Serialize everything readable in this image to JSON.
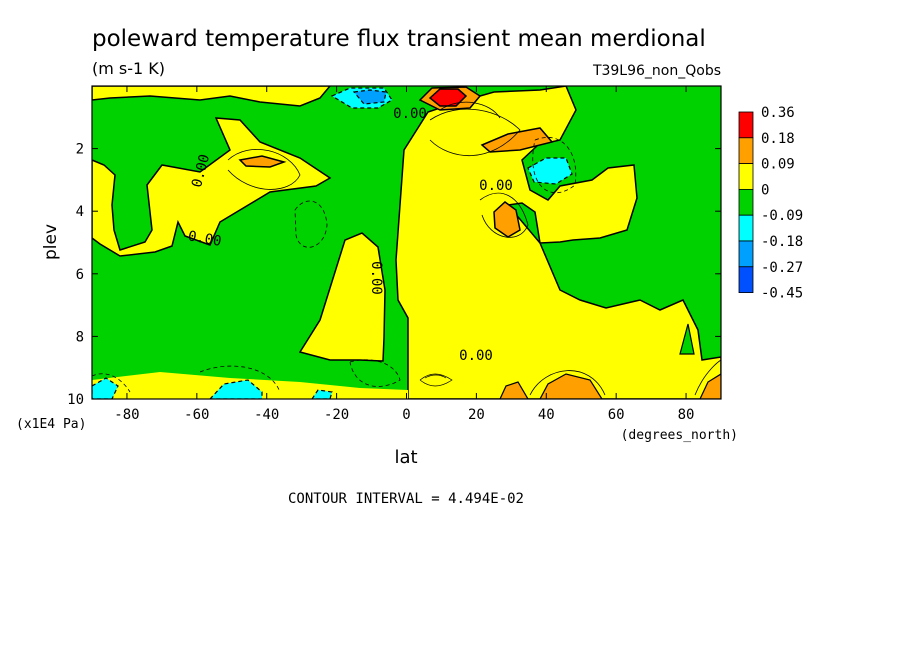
{
  "chart_data": {
    "type": "heatmap",
    "title": "poleward temperature flux transient mean merdional",
    "units": "(m s-1 K)",
    "experiment": "T39L96_non_Qobs",
    "xlabel": "lat",
    "x_units": "(degrees_north)",
    "ylabel": "plev",
    "y_units": "(x1E4 Pa)",
    "xlim": [
      -90,
      90
    ],
    "ylim": [
      0,
      10
    ],
    "y_inverted": true,
    "x_ticks": [
      {
        "value": -80,
        "label": "-80"
      },
      {
        "value": -60,
        "label": "-60"
      },
      {
        "value": -40,
        "label": "-40"
      },
      {
        "value": -20,
        "label": "-20"
      },
      {
        "value": 0,
        "label": "0"
      },
      {
        "value": 20,
        "label": "20"
      },
      {
        "value": 40,
        "label": "40"
      },
      {
        "value": 60,
        "label": "60"
      },
      {
        "value": 80,
        "label": "80"
      }
    ],
    "y_ticks": [
      {
        "value": 2,
        "label": "2"
      },
      {
        "value": 4,
        "label": "4"
      },
      {
        "value": 6,
        "label": "6"
      },
      {
        "value": 8,
        "label": "8"
      },
      {
        "value": 10,
        "label": "10"
      }
    ],
    "colorbar": [
      {
        "label": "0.36",
        "color": "#ff0000"
      },
      {
        "label": "0.18",
        "color": "#ffa000"
      },
      {
        "label": "0.09",
        "color": "#ffff00"
      },
      {
        "label": "0",
        "color": "#00d200"
      },
      {
        "label": "-0.09",
        "color": "#00ffff"
      },
      {
        "label": "-0.18",
        "color": "#00a0ff"
      },
      {
        "label": "-0.27",
        "color": "#0050ff"
      },
      {
        "label": "-0.45",
        "color": ""
      }
    ],
    "contour_labels": [
      {
        "text": "0.00",
        "lat": -57,
        "plev": 3.1,
        "rotate": -75
      },
      {
        "text": "0.00",
        "lat": -59,
        "plev": 5.0,
        "rotate": 10
      },
      {
        "text": "0.00",
        "lat": -9,
        "plev": 6.2,
        "rotate": 90
      },
      {
        "text": "0.00",
        "lat": 1,
        "plev": 1.2,
        "rotate": 0
      },
      {
        "text": "0.00",
        "lat": 25,
        "plev": 3.3,
        "rotate": 0
      },
      {
        "text": "0.00",
        "lat": 20,
        "plev": 8.6,
        "rotate": 0
      }
    ],
    "footer": "CONTOUR INTERVAL = 4.494E-02"
  }
}
